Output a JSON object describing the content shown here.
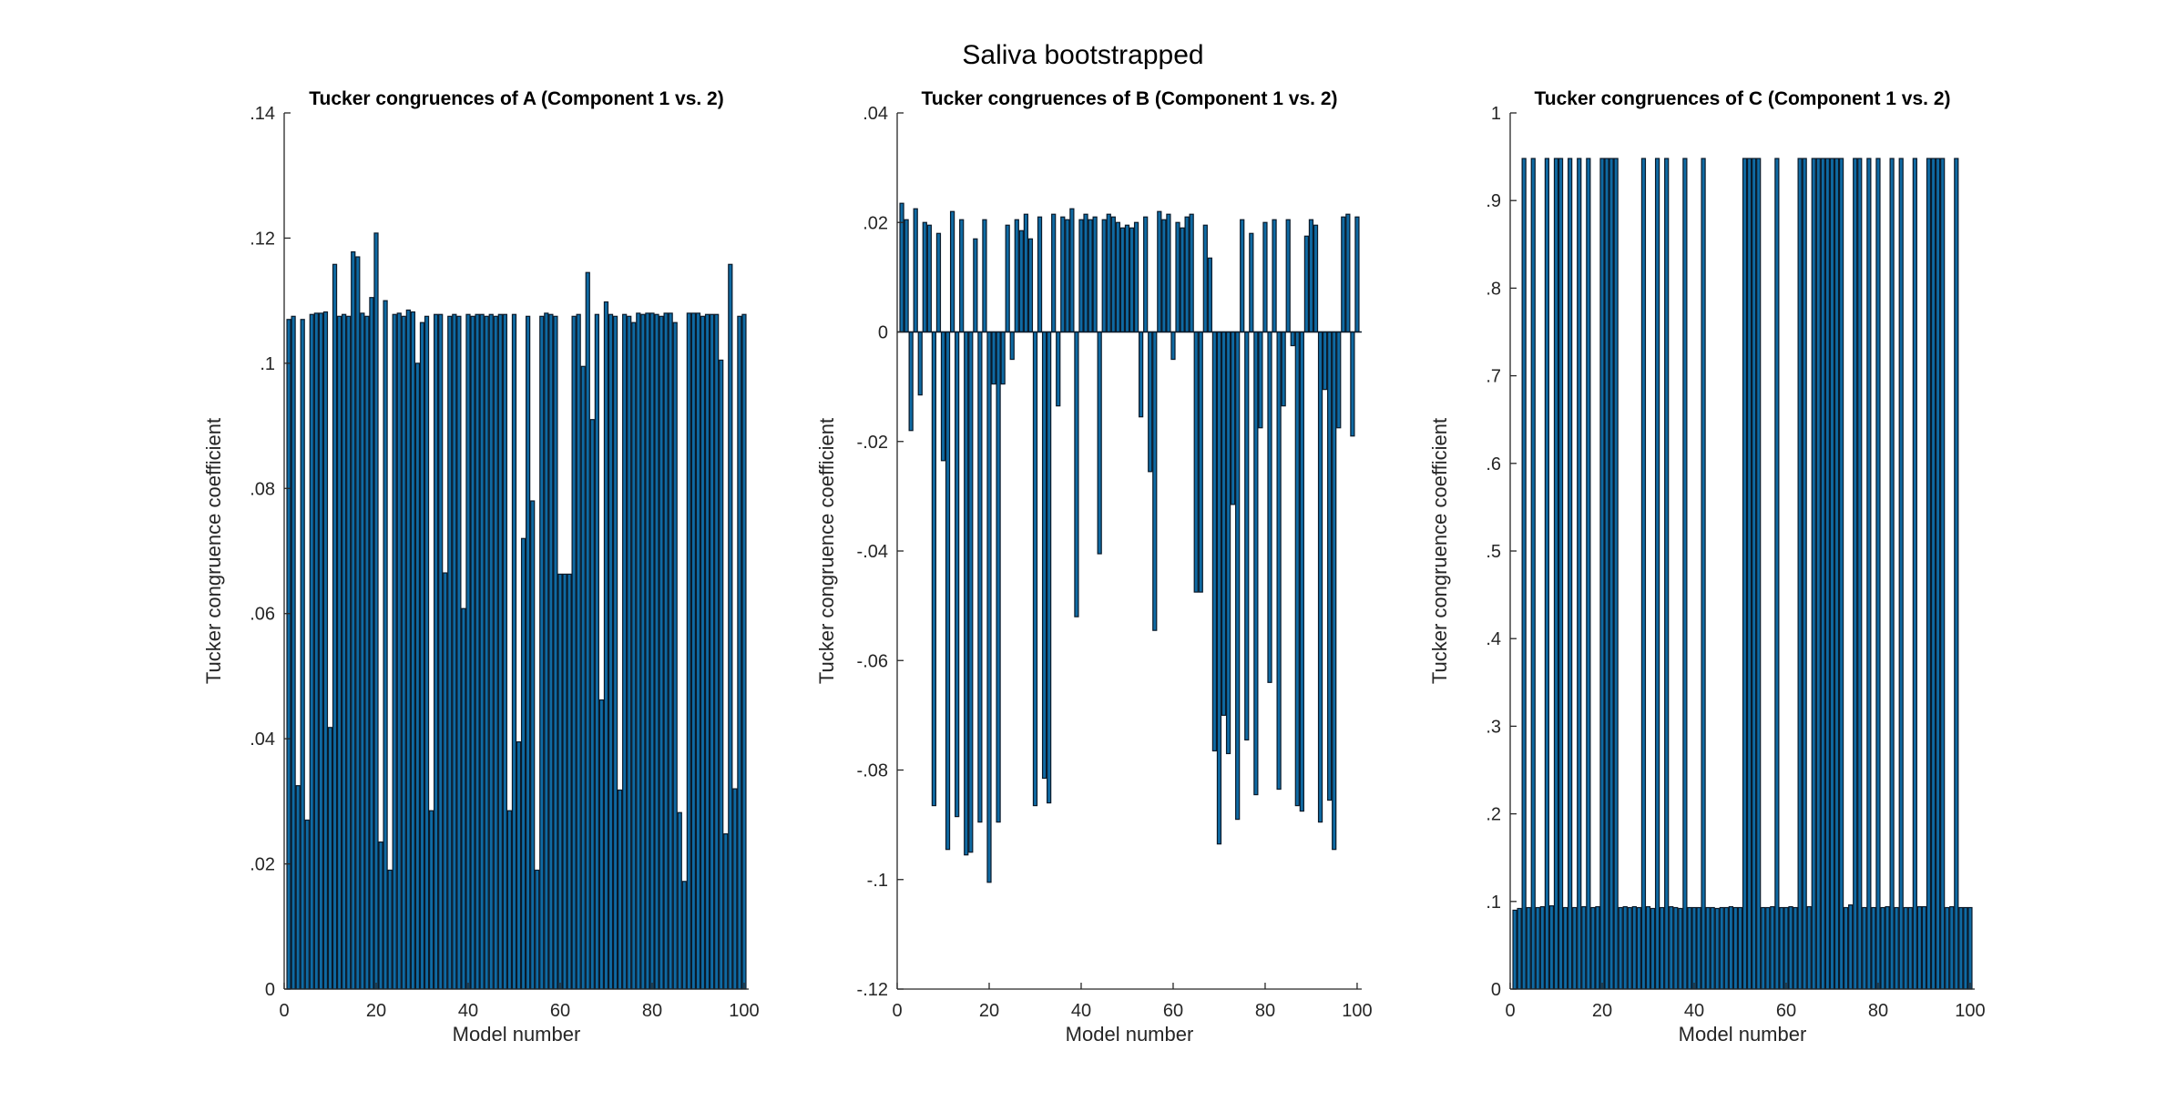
{
  "figure": {
    "title": "Saliva bootstrapped"
  },
  "colors": {
    "bar_fill": "#0f6aa3",
    "bar_edge": "#0a1a2a",
    "axis": "#262626",
    "background": "#ffffff"
  },
  "chart_data": [
    {
      "type": "bar",
      "title": "Tucker congruences of A (Component 1 vs. 2)",
      "xlabel": "Model number",
      "ylabel": "Tucker congruence coefficient",
      "xlim": [
        0,
        101
      ],
      "ylim": [
        0,
        0.14
      ],
      "xticks": [
        0,
        20,
        40,
        60,
        80,
        100
      ],
      "yticks": [
        0,
        0.02,
        0.04,
        0.06,
        0.08,
        0.1,
        0.12,
        0.14
      ],
      "x": [
        1,
        2,
        3,
        4,
        5,
        6,
        7,
        8,
        9,
        10,
        11,
        12,
        13,
        14,
        15,
        16,
        17,
        18,
        19,
        20,
        21,
        22,
        23,
        24,
        25,
        26,
        27,
        28,
        29,
        30,
        31,
        32,
        33,
        34,
        35,
        36,
        37,
        38,
        39,
        40,
        41,
        42,
        43,
        44,
        45,
        46,
        47,
        48,
        49,
        50,
        51,
        52,
        53,
        54,
        55,
        56,
        57,
        58,
        59,
        60,
        61,
        62,
        63,
        64,
        65,
        66,
        67,
        68,
        69,
        70,
        71,
        72,
        73,
        74,
        75,
        76,
        77,
        78,
        79,
        80,
        81,
        82,
        83,
        84,
        85,
        86,
        87,
        88,
        89,
        90,
        91,
        92,
        93,
        94,
        95,
        96,
        97,
        98,
        99,
        100
      ],
      "values": [
        0.107,
        0.1075,
        0.0325,
        0.107,
        0.027,
        0.1078,
        0.108,
        0.108,
        0.1082,
        0.0418,
        0.1158,
        0.1075,
        0.1078,
        0.1075,
        0.1178,
        0.117,
        0.108,
        0.1075,
        0.1105,
        0.1208,
        0.0235,
        0.11,
        0.019,
        0.1078,
        0.108,
        0.1075,
        0.1085,
        0.1082,
        0.1,
        0.1065,
        0.1075,
        0.0285,
        0.1078,
        0.1078,
        0.0665,
        0.1075,
        0.1078,
        0.1075,
        0.0608,
        0.1078,
        0.1075,
        0.1078,
        0.1078,
        0.1075,
        0.1078,
        0.1075,
        0.1078,
        0.1078,
        0.0285,
        0.1078,
        0.0395,
        0.072,
        0.1075,
        0.078,
        0.019,
        0.1075,
        0.108,
        0.1078,
        0.1075,
        0.0663,
        0.0663,
        0.0663,
        0.1075,
        0.1078,
        0.0995,
        0.1145,
        0.091,
        0.1078,
        0.0462,
        0.1098,
        0.1078,
        0.1075,
        0.0318,
        0.1078,
        0.1075,
        0.1065,
        0.108,
        0.1078,
        0.108,
        0.108,
        0.1078,
        0.1075,
        0.108,
        0.108,
        0.1065,
        0.0282,
        0.0172,
        0.108,
        0.108,
        0.108,
        0.1075,
        0.1078,
        0.1078,
        0.1078,
        0.1005,
        0.0248,
        0.1158,
        0.032,
        0.1075,
        0.1078
      ],
      "bar_width": 0.8
    },
    {
      "type": "bar",
      "title": "Tucker congruences of B (Component 1 vs. 2)",
      "xlabel": "Model number",
      "ylabel": "Tucker congruence coefficient",
      "xlim": [
        0,
        101
      ],
      "ylim": [
        -0.12,
        0.04
      ],
      "xticks": [
        0,
        20,
        40,
        60,
        80,
        100
      ],
      "yticks": [
        -0.12,
        -0.1,
        -0.08,
        -0.06,
        -0.04,
        -0.02,
        0,
        0.02,
        0.04
      ],
      "x": [
        1,
        2,
        3,
        4,
        5,
        6,
        7,
        8,
        9,
        10,
        11,
        12,
        13,
        14,
        15,
        16,
        17,
        18,
        19,
        20,
        21,
        22,
        23,
        24,
        25,
        26,
        27,
        28,
        29,
        30,
        31,
        32,
        33,
        34,
        35,
        36,
        37,
        38,
        39,
        40,
        41,
        42,
        43,
        44,
        45,
        46,
        47,
        48,
        49,
        50,
        51,
        52,
        53,
        54,
        55,
        56,
        57,
        58,
        59,
        60,
        61,
        62,
        63,
        64,
        65,
        66,
        67,
        68,
        69,
        70,
        71,
        72,
        73,
        74,
        75,
        76,
        77,
        78,
        79,
        80,
        81,
        82,
        83,
        84,
        85,
        86,
        87,
        88,
        89,
        90,
        91,
        92,
        93,
        94,
        95,
        96,
        97,
        98,
        99,
        100
      ],
      "values": [
        0.0235,
        0.0205,
        -0.018,
        0.0225,
        -0.0115,
        0.02,
        0.0195,
        -0.0865,
        0.018,
        -0.0235,
        -0.0945,
        0.022,
        -0.0885,
        0.0205,
        -0.0955,
        -0.095,
        0.017,
        -0.0895,
        0.0205,
        -0.1005,
        -0.0095,
        -0.0895,
        -0.0095,
        0.0195,
        -0.005,
        0.0205,
        0.0185,
        0.0215,
        0.017,
        -0.0865,
        0.021,
        -0.0815,
        -0.086,
        0.0215,
        -0.0135,
        0.021,
        0.0205,
        0.0225,
        -0.052,
        0.0205,
        0.0215,
        0.0205,
        0.021,
        -0.0405,
        0.0205,
        0.0215,
        0.021,
        0.02,
        0.019,
        0.0195,
        0.019,
        0.02,
        -0.0155,
        0.021,
        -0.0255,
        -0.0545,
        0.022,
        0.0205,
        0.0215,
        -0.005,
        0.02,
        0.019,
        0.021,
        0.0215,
        -0.0475,
        -0.0475,
        0.0195,
        0.0135,
        -0.0765,
        -0.0935,
        -0.07,
        -0.077,
        -0.0315,
        -0.089,
        0.0205,
        -0.0745,
        0.018,
        -0.0845,
        -0.0175,
        0.02,
        -0.064,
        0.0205,
        -0.0835,
        -0.0135,
        0.0205,
        -0.0025,
        -0.0865,
        -0.0875,
        0.0175,
        0.0205,
        0.0195,
        -0.0895,
        -0.0105,
        -0.0855,
        -0.0945,
        -0.0175,
        0.021,
        0.0215,
        -0.019,
        0.021
      ],
      "bar_width": 0.8
    },
    {
      "type": "bar",
      "title": "Tucker congruences of C (Component 1 vs. 2)",
      "xlabel": "Model number",
      "ylabel": "Tucker congruence coefficient",
      "xlim": [
        0,
        101
      ],
      "ylim": [
        0,
        1
      ],
      "xticks": [
        0,
        20,
        40,
        60,
        80,
        100
      ],
      "yticks": [
        0,
        0.1,
        0.2,
        0.3,
        0.4,
        0.5,
        0.6,
        0.7,
        0.8,
        0.9,
        1
      ],
      "x": [
        1,
        2,
        3,
        4,
        5,
        6,
        7,
        8,
        9,
        10,
        11,
        12,
        13,
        14,
        15,
        16,
        17,
        18,
        19,
        20,
        21,
        22,
        23,
        24,
        25,
        26,
        27,
        28,
        29,
        30,
        31,
        32,
        33,
        34,
        35,
        36,
        37,
        38,
        39,
        40,
        41,
        42,
        43,
        44,
        45,
        46,
        47,
        48,
        49,
        50,
        51,
        52,
        53,
        54,
        55,
        56,
        57,
        58,
        59,
        60,
        61,
        62,
        63,
        64,
        65,
        66,
        67,
        68,
        69,
        70,
        71,
        72,
        73,
        74,
        75,
        76,
        77,
        78,
        79,
        80,
        81,
        82,
        83,
        84,
        85,
        86,
        87,
        88,
        89,
        90,
        91,
        92,
        93,
        94,
        95,
        96,
        97,
        98,
        99,
        100
      ],
      "values": [
        0.09,
        0.092,
        0.948,
        0.093,
        0.948,
        0.093,
        0.094,
        0.948,
        0.095,
        0.948,
        0.948,
        0.093,
        0.948,
        0.093,
        0.948,
        0.094,
        0.948,
        0.093,
        0.094,
        0.948,
        0.948,
        0.948,
        0.948,
        0.093,
        0.094,
        0.093,
        0.094,
        0.093,
        0.948,
        0.094,
        0.092,
        0.948,
        0.093,
        0.948,
        0.094,
        0.093,
        0.092,
        0.948,
        0.093,
        0.093,
        0.093,
        0.948,
        0.093,
        0.093,
        0.092,
        0.093,
        0.093,
        0.094,
        0.093,
        0.093,
        0.948,
        0.948,
        0.948,
        0.948,
        0.093,
        0.093,
        0.094,
        0.948,
        0.093,
        0.093,
        0.094,
        0.093,
        0.948,
        0.948,
        0.094,
        0.948,
        0.948,
        0.948,
        0.948,
        0.948,
        0.948,
        0.948,
        0.093,
        0.096,
        0.948,
        0.948,
        0.093,
        0.948,
        0.093,
        0.948,
        0.093,
        0.094,
        0.948,
        0.093,
        0.948,
        0.093,
        0.093,
        0.948,
        0.094,
        0.094,
        0.948,
        0.948,
        0.948,
        0.948,
        0.093,
        0.094,
        0.948,
        0.093,
        0.093,
        0.093
      ],
      "bar_width": 0.8
    }
  ]
}
